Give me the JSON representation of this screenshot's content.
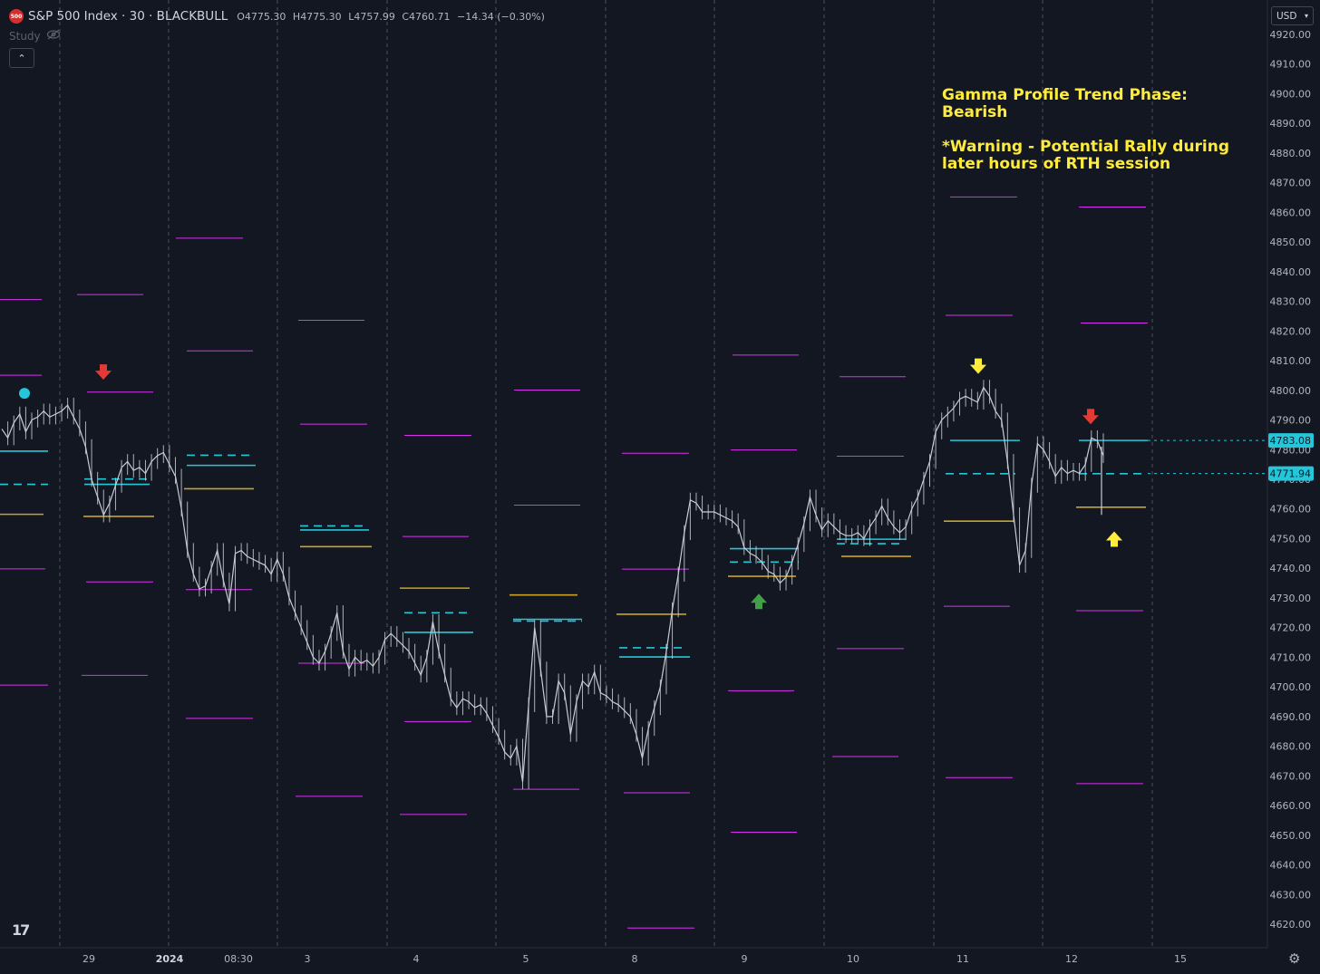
{
  "header": {
    "logo_text": "500",
    "symbol": "S&P 500 Index · 30 · BLACKBULL",
    "ohlc": [
      {
        "k": "O",
        "v": "4775.30"
      },
      {
        "k": "H",
        "v": "4775.30"
      },
      {
        "k": "L",
        "v": "4757.99"
      },
      {
        "k": "C",
        "v": "4760.71"
      }
    ],
    "change": "−14.34 (−0.30%)",
    "study_label": "Study",
    "currency": "USD"
  },
  "annotation": {
    "text": "Gamma Profile Trend Phase:\nBearish\n\n*Warning - Potential Rally during\nlater hours of RTH session",
    "color": "#ffeb3b"
  },
  "colors": {
    "background": "#131722",
    "price": "#c8ccd4",
    "magenta": "#d633ee",
    "cyan": "#26c6da",
    "gold": "#c9a227",
    "grid_v": "#5d606b",
    "arrow_red": "#e53935",
    "arrow_yellow": "#ffeb3b",
    "arrow_green": "#43a047",
    "axis_text": "#b2b5be"
  },
  "chart_data": {
    "type": "line",
    "title": "S&P 500 Index · 30 · BLACKBULL",
    "y_axis": {
      "range": [
        4615,
        4925
      ],
      "ticks": [
        4620,
        4630,
        4640,
        4650,
        4660,
        4670,
        4680,
        4690,
        4700,
        4710,
        4720,
        4730,
        4740,
        4750,
        4760,
        4770,
        4780,
        4790,
        4800,
        4810,
        4820,
        4830,
        4840,
        4850,
        4860,
        4870,
        4880,
        4890,
        4900,
        4910,
        4920
      ],
      "tick_labels": [
        "4620.00",
        "4630.00",
        "4640.00",
        "4650.00",
        "4660.00",
        "4670.00",
        "4680.00",
        "4690.00",
        "4700.00",
        "4710.00",
        "4720.00",
        "4730.00",
        "4740.00",
        "4750.00",
        "4760.00",
        "4770.00",
        "4780.00",
        "4790.00",
        "4800.00",
        "4810.00",
        "4820.00",
        "4830.00",
        "4840.00",
        "4850.00",
        "4860.00",
        "4870.00",
        "4880.00",
        "4890.00",
        "4900.00",
        "4910.00",
        "4920.00"
      ]
    },
    "x_axis": {
      "labels": [
        "29",
        "2024",
        "08:30",
        "3",
        "4",
        "5",
        "8",
        "9",
        "10",
        "11",
        "12",
        "15"
      ],
      "bold": [
        "2024"
      ]
    },
    "price_labels": [
      {
        "value": 4783.08,
        "text": "4783.08",
        "style": "solid"
      },
      {
        "value": 4771.94,
        "text": "4771.94",
        "style": "dashed"
      }
    ],
    "series": [
      {
        "values": [
          [
            4787,
            4784,
            4789,
            4792,
            4786,
            4790,
            4791,
            4793,
            4791,
            4792,
            4793,
            4795,
            4791,
            4787,
            4781,
            4770,
            4764,
            4758,
            4762,
            4768,
            4774,
            4776,
            4773,
            4774,
            4772,
            4776,
            4778,
            4779,
            4775,
            4771,
            4760,
            4746,
            4738,
            4733,
            4734,
            4740,
            4746,
            4736,
            4728,
            4745,
            4746,
            4744,
            4743,
            4742,
            4741,
            4738,
            4743,
            4738,
            4730,
            4725,
            4720,
            4715,
            4710,
            4708,
            4712,
            4718,
            4725,
            4712,
            4706,
            4710,
            4708,
            4709,
            4707,
            4710,
            4716,
            4718,
            4716,
            4714,
            4712,
            4708,
            4704,
            4710,
            4722,
            4712,
            4704,
            4696,
            4693,
            4696,
            4695,
            4693,
            4694,
            4691,
            4687,
            4683,
            4678,
            4676,
            4680,
            4668,
            4694,
            4720,
            4706,
            4690,
            4690,
            4702,
            4698,
            4684,
            4695,
            4702,
            4700,
            4705,
            4698,
            4697,
            4695,
            4694,
            4692,
            4690,
            4684,
            4676,
            4686,
            4693,
            4700,
            4712,
            4726,
            4738,
            4752,
            4763,
            4762,
            4759,
            4759,
            4759,
            4758,
            4757,
            4756,
            4754,
            4747,
            4745,
            4744,
            4742,
            4739,
            4738,
            4735,
            4737,
            4742,
            4748,
            4755,
            4764,
            4758,
            4753,
            4756,
            4754,
            4752,
            4751,
            4751,
            4752,
            4750,
            4754,
            4757,
            4761,
            4757,
            4754,
            4752,
            4754,
            4760,
            4764,
            4770,
            4776,
            4786,
            4790,
            4792,
            4794,
            4797,
            4798,
            4797,
            4796,
            4801,
            4798,
            4793,
            4790,
            4776,
            4758,
            4741,
            4746,
            4768,
            4782,
            4780,
            4776,
            4771,
            4774,
            4772,
            4773,
            4772,
            4775,
            4784,
            4783,
            4778
          ]
        ]
      }
    ],
    "levels": [
      {
        "x0": 0,
        "x1": 46,
        "value": 4830.6,
        "kind": "magenta"
      },
      {
        "x0": 0,
        "x1": 46,
        "value": 4805.1,
        "kind": "magenta"
      },
      {
        "x0": 0,
        "x1": 53,
        "value": 4779.5,
        "kind": "cyan"
      },
      {
        "x0": 0,
        "x1": 53,
        "value": 4768.3,
        "kind": "cyan_dash"
      },
      {
        "x0": 0,
        "x1": 48,
        "value": 4758.2,
        "kind": "gold"
      },
      {
        "x0": 0,
        "x1": 50,
        "value": 4739.8,
        "kind": "magenta"
      },
      {
        "x0": 0,
        "x1": 53,
        "value": 4700.6,
        "kind": "magenta"
      },
      {
        "x0": 85,
        "x1": 158,
        "value": 4832.3,
        "kind": "magenta"
      },
      {
        "x0": 96,
        "x1": 169,
        "value": 4799.4,
        "kind": "magenta"
      },
      {
        "x0": 93,
        "x1": 165,
        "value": 4770.1,
        "kind": "cyan_dash"
      },
      {
        "x0": 93,
        "x1": 165,
        "value": 4768.3,
        "kind": "cyan"
      },
      {
        "x0": 92,
        "x1": 170,
        "value": 4757.5,
        "kind": "gold"
      },
      {
        "x0": 95,
        "x1": 169,
        "value": 4735.4,
        "kind": "magenta"
      },
      {
        "x0": 90,
        "x1": 163,
        "value": 4703.9,
        "kind": "magenta"
      },
      {
        "x0": 194,
        "x1": 268,
        "value": 4851.3,
        "kind": "magenta"
      },
      {
        "x0": 206,
        "x1": 279,
        "value": 4813.3,
        "kind": "magenta"
      },
      {
        "x0": 206,
        "x1": 278,
        "value": 4778.1,
        "kind": "cyan_dash"
      },
      {
        "x0": 206,
        "x1": 282,
        "value": 4774.7,
        "kind": "cyan"
      },
      {
        "x0": 203,
        "x1": 280,
        "value": 4766.8,
        "kind": "gold"
      },
      {
        "x0": 205,
        "x1": 278,
        "value": 4732.8,
        "kind": "magenta"
      },
      {
        "x0": 205,
        "x1": 279,
        "value": 4689.4,
        "kind": "magenta"
      },
      {
        "x0": 329,
        "x1": 402,
        "value": 4823.6,
        "kind": "magenta"
      },
      {
        "x0": 331,
        "x1": 405,
        "value": 4788.6,
        "kind": "magenta"
      },
      {
        "x0": 331,
        "x1": 406,
        "value": 4754.3,
        "kind": "cyan_dash"
      },
      {
        "x0": 331,
        "x1": 407,
        "value": 4752.9,
        "kind": "cyan"
      },
      {
        "x0": 331,
        "x1": 410,
        "value": 4747.3,
        "kind": "gold"
      },
      {
        "x0": 329,
        "x1": 402,
        "value": 4708.0,
        "kind": "magenta"
      },
      {
        "x0": 326,
        "x1": 400,
        "value": 4663.1,
        "kind": "magenta"
      },
      {
        "x0": 446,
        "x1": 520,
        "value": 4784.8,
        "kind": "magenta"
      },
      {
        "x0": 444,
        "x1": 517,
        "value": 4750.7,
        "kind": "magenta"
      },
      {
        "x0": 441,
        "x1": 518,
        "value": 4733.3,
        "kind": "gold"
      },
      {
        "x0": 446,
        "x1": 520,
        "value": 4725.0,
        "kind": "cyan_dash"
      },
      {
        "x0": 446,
        "x1": 522,
        "value": 4718.4,
        "kind": "cyan"
      },
      {
        "x0": 446,
        "x1": 520,
        "value": 4688.3,
        "kind": "magenta"
      },
      {
        "x0": 441,
        "x1": 515,
        "value": 4657.0,
        "kind": "magenta"
      },
      {
        "x0": 567,
        "x1": 640,
        "value": 4800.1,
        "kind": "magenta"
      },
      {
        "x0": 567,
        "x1": 640,
        "value": 4761.3,
        "kind": "magenta"
      },
      {
        "x0": 562,
        "x1": 637,
        "value": 4731.0,
        "kind": "gold"
      },
      {
        "x0": 566,
        "x1": 642,
        "value": 4722.8,
        "kind": "cyan"
      },
      {
        "x0": 566,
        "x1": 642,
        "value": 4722.2,
        "kind": "cyan_dash"
      },
      {
        "x0": 566,
        "x1": 639,
        "value": 4665.5,
        "kind": "magenta"
      },
      {
        "x0": 686,
        "x1": 760,
        "value": 4778.8,
        "kind": "magenta"
      },
      {
        "x0": 686,
        "x1": 760,
        "value": 4739.7,
        "kind": "magenta"
      },
      {
        "x0": 680,
        "x1": 757,
        "value": 4724.5,
        "kind": "gold"
      },
      {
        "x0": 683,
        "x1": 758,
        "value": 4713.2,
        "kind": "cyan_dash"
      },
      {
        "x0": 683,
        "x1": 761,
        "value": 4710.1,
        "kind": "cyan"
      },
      {
        "x0": 688,
        "x1": 761,
        "value": 4664.3,
        "kind": "magenta"
      },
      {
        "x0": 692,
        "x1": 766,
        "value": 4618.7,
        "kind": "magenta"
      },
      {
        "x0": 808,
        "x1": 881,
        "value": 4811.9,
        "kind": "magenta"
      },
      {
        "x0": 806,
        "x1": 879,
        "value": 4779.9,
        "kind": "magenta"
      },
      {
        "x0": 805,
        "x1": 881,
        "value": 4746.6,
        "kind": "cyan"
      },
      {
        "x0": 805,
        "x1": 881,
        "value": 4742.1,
        "kind": "cyan_dash"
      },
      {
        "x0": 803,
        "x1": 878,
        "value": 4737.3,
        "kind": "gold"
      },
      {
        "x0": 803,
        "x1": 876,
        "value": 4698.7,
        "kind": "magenta"
      },
      {
        "x0": 806,
        "x1": 879,
        "value": 4651.0,
        "kind": "magenta"
      },
      {
        "x0": 926,
        "x1": 999,
        "value": 4804.6,
        "kind": "magenta"
      },
      {
        "x0": 923,
        "x1": 997,
        "value": 4777.8,
        "kind": "magenta"
      },
      {
        "x0": 923,
        "x1": 999,
        "value": 4749.8,
        "kind": "cyan"
      },
      {
        "x0": 923,
        "x1": 997,
        "value": 4748.3,
        "kind": "cyan_dash"
      },
      {
        "x0": 928,
        "x1": 1005,
        "value": 4744.0,
        "kind": "gold"
      },
      {
        "x0": 923,
        "x1": 997,
        "value": 4712.9,
        "kind": "magenta"
      },
      {
        "x0": 918,
        "x1": 991,
        "value": 4676.5,
        "kind": "magenta"
      },
      {
        "x0": 1048,
        "x1": 1122,
        "value": 4865.2,
        "kind": "magenta"
      },
      {
        "x0": 1043,
        "x1": 1117,
        "value": 4825.3,
        "kind": "magenta"
      },
      {
        "x0": 1048,
        "x1": 1125,
        "value": 4783.1,
        "kind": "cyan"
      },
      {
        "x0": 1043,
        "x1": 1120,
        "value": 4771.9,
        "kind": "cyan_dash"
      },
      {
        "x0": 1041,
        "x1": 1118,
        "value": 4755.9,
        "kind": "gold"
      },
      {
        "x0": 1041,
        "x1": 1114,
        "value": 4727.2,
        "kind": "magenta"
      },
      {
        "x0": 1043,
        "x1": 1117,
        "value": 4669.4,
        "kind": "magenta"
      },
      {
        "x0": 1190,
        "x1": 1264,
        "value": 4861.8,
        "kind": "magenta"
      },
      {
        "x0": 1192,
        "x1": 1266,
        "value": 4822.7,
        "kind": "magenta"
      },
      {
        "x0": 1190,
        "x1": 1266,
        "value": 4783.1,
        "kind": "cyan"
      },
      {
        "x0": 1190,
        "x1": 1262,
        "value": 4771.9,
        "kind": "cyan_dash"
      },
      {
        "x0": 1187,
        "x1": 1264,
        "value": 4760.6,
        "kind": "gold"
      },
      {
        "x0": 1187,
        "x1": 1261,
        "value": 4725.7,
        "kind": "magenta"
      },
      {
        "x0": 1187,
        "x1": 1261,
        "value": 4667.4,
        "kind": "magenta"
      }
    ],
    "arrows": [
      {
        "at": 114,
        "value": 4806,
        "dir": "down",
        "color": "red"
      },
      {
        "at": 837,
        "value": 4729,
        "dir": "up",
        "color": "green"
      },
      {
        "at": 1079,
        "value": 4808,
        "dir": "down",
        "color": "yellow"
      },
      {
        "at": 1203,
        "value": 4791,
        "dir": "down",
        "color": "red"
      },
      {
        "at": 1229,
        "value": 4750,
        "dir": "up",
        "color": "yellow"
      }
    ],
    "markers": [
      {
        "at": 27,
        "value": 4799,
        "shape": "dot",
        "color": "cyan"
      }
    ]
  }
}
